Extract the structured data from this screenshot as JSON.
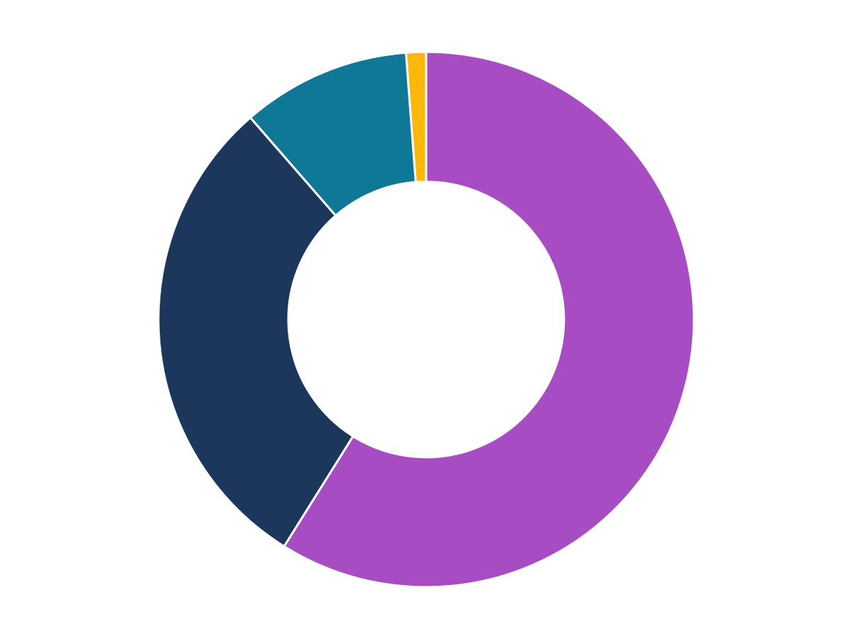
{
  "chart_data": {
    "type": "donut",
    "values": [
      58.9,
      29.7,
      10.2,
      1.2
    ],
    "colors": [
      "#a84cc4",
      "#1c365c",
      "#0e7896",
      "#fbb80a"
    ]
  }
}
